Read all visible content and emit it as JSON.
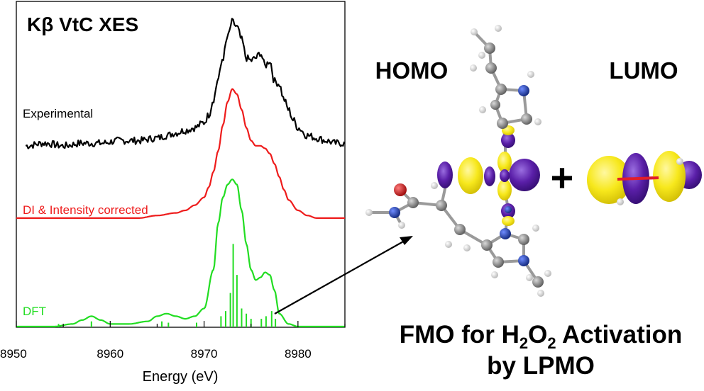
{
  "chart_data": {
    "type": "line",
    "title": "Kβ VtC XES",
    "xlabel": "Energy (eV)",
    "ylabel": "",
    "xlim": [
      8950,
      8985
    ],
    "x_ticks": [
      8950,
      8960,
      8970,
      8980
    ],
    "grid": false,
    "series": [
      {
        "name": "Experimental",
        "color": "#000000",
        "offset": 0.7,
        "x": [
          8951,
          8953,
          8955,
          8957,
          8959,
          8961,
          8963,
          8965,
          8966,
          8967,
          8968,
          8969,
          8970,
          8970.5,
          8971,
          8971.5,
          8972,
          8972.5,
          8973,
          8973.5,
          8974,
          8974.5,
          8975,
          8975.5,
          8976,
          8976.5,
          8977,
          8977.5,
          8978,
          8978.5,
          8979,
          8979.5,
          8980,
          8981,
          8982,
          8983,
          8984,
          8985
        ],
        "y": [
          0.0,
          0.01,
          0.0,
          0.01,
          0.01,
          0.02,
          0.02,
          0.03,
          0.04,
          0.05,
          0.06,
          0.07,
          0.09,
          0.12,
          0.18,
          0.26,
          0.34,
          0.42,
          0.48,
          0.46,
          0.41,
          0.34,
          0.33,
          0.34,
          0.36,
          0.31,
          0.33,
          0.25,
          0.24,
          0.18,
          0.14,
          0.1,
          0.07,
          0.04,
          0.03,
          0.02,
          0.01,
          0.01
        ]
      },
      {
        "name": "DI & Intensity corrected",
        "color": "#ee1c1c",
        "offset": 0.42,
        "x": [
          8950,
          8955,
          8960,
          8963,
          8965,
          8967,
          8968,
          8969,
          8970,
          8970.5,
          8971,
          8971.5,
          8972,
          8972.5,
          8973,
          8973.5,
          8974,
          8974.5,
          8975,
          8975.5,
          8976,
          8976.5,
          8977,
          8977.5,
          8978,
          8978.5,
          8979,
          8980,
          8981,
          8982,
          8983,
          8985
        ],
        "y": [
          0.0,
          0.0,
          0.0,
          0.0,
          0.01,
          0.02,
          0.03,
          0.05,
          0.08,
          0.12,
          0.18,
          0.26,
          0.36,
          0.45,
          0.5,
          0.48,
          0.42,
          0.35,
          0.3,
          0.28,
          0.28,
          0.27,
          0.25,
          0.21,
          0.16,
          0.11,
          0.07,
          0.03,
          0.01,
          0.0,
          0.0,
          0.0
        ]
      },
      {
        "name": "DFT",
        "color": "#22dd22",
        "offset": 0.0,
        "x": [
          8950,
          8954,
          8956,
          8957,
          8958,
          8959,
          8960,
          8962,
          8964,
          8965,
          8966,
          8967,
          8968,
          8969,
          8970,
          8971,
          8971.5,
          8972,
          8972.5,
          8973,
          8973.5,
          8974,
          8974.5,
          8975,
          8975.5,
          8976,
          8976.5,
          8977,
          8977.5,
          8978,
          8979,
          8980,
          8985
        ],
        "y": [
          0.0,
          0.0,
          0.01,
          0.025,
          0.04,
          0.025,
          0.01,
          0.01,
          0.02,
          0.04,
          0.05,
          0.04,
          0.03,
          0.04,
          0.07,
          0.22,
          0.4,
          0.5,
          0.55,
          0.57,
          0.55,
          0.45,
          0.32,
          0.22,
          0.18,
          0.19,
          0.21,
          0.2,
          0.14,
          0.05,
          0.01,
          0.0,
          0.0
        ]
      }
    ],
    "sticks": {
      "color": "#22dd22",
      "x": [
        8954.5,
        8958,
        8965.5,
        8966.2,
        8969.2,
        8971.8,
        8972.3,
        8972.8,
        8973.1,
        8973.5,
        8974,
        8974.5,
        8975,
        8976.1,
        8976.6,
        8977.2,
        8977.6
      ],
      "y": [
        0.01,
        0.02,
        0.02,
        0.015,
        0.015,
        0.04,
        0.06,
        0.13,
        0.32,
        0.2,
        0.07,
        0.05,
        0.03,
        0.03,
        0.04,
        0.06,
        0.03
      ]
    }
  },
  "panel_labels": {
    "homo": "HOMO",
    "lumo": "LUMO",
    "plus": "+",
    "fmo_line1_pre": "FMO for H",
    "fmo_sub1": "2",
    "fmo_mid": "O",
    "fmo_sub2": "2",
    "fmo_line1_post": " Activation",
    "fmo_line2": "by LPMO"
  },
  "colors": {
    "orbital_yellow": "#f7e81c",
    "orbital_purple": "#5a1fa8",
    "atom_carbon": "#8a8a8a",
    "atom_nitrogen": "#1c3fa8",
    "atom_oxygen": "#d81414",
    "atom_hydrogen": "#f2f2f2",
    "bond_red": "#e01e2a"
  }
}
